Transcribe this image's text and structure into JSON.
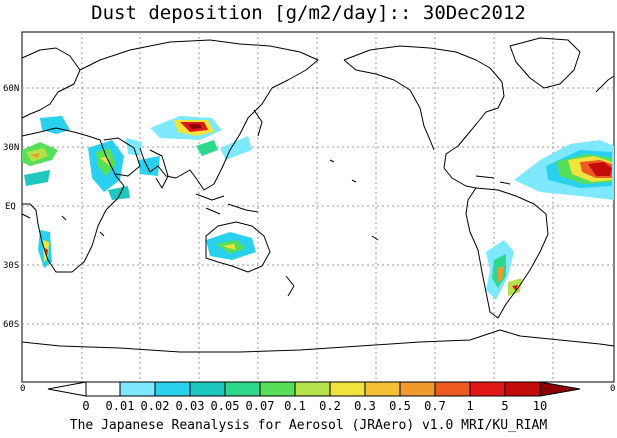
{
  "title": "Dust deposition [g/m2/day]:: 30Dec2012",
  "lat_labels": [
    "60N",
    "30N",
    "EQ",
    "30S",
    "60S"
  ],
  "colorbar": {
    "ticks": [
      "0",
      "0.01",
      "0.02",
      "0.03",
      "0.05",
      "0.07",
      "0.1",
      "0.2",
      "0.3",
      "0.5",
      "0.7",
      "1",
      "5",
      "10"
    ],
    "colors": [
      "#ffffff",
      "#7ee8ff",
      "#2ad1ee",
      "#1ec8c0",
      "#2ed88a",
      "#58df5a",
      "#b4e24a",
      "#f0e43c",
      "#f5c035",
      "#f09a2e",
      "#ee5a22",
      "#e01818",
      "#c20c0c",
      "#8e0000"
    ],
    "left_edge_label": "0",
    "right_edge_label": "0"
  },
  "credit": "The Japanese Reanalysis for Aerosol (JRAero) v1.0 MRI/KU_RIAM"
}
